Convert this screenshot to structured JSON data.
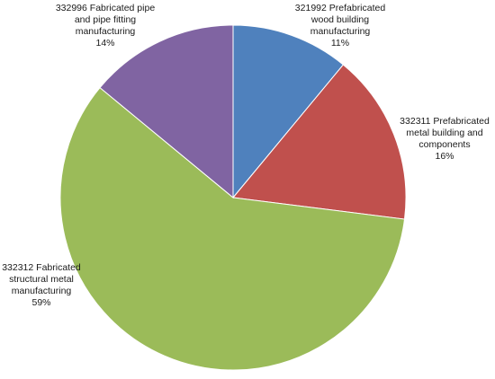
{
  "chart_data": {
    "type": "pie",
    "title": "",
    "start_angle_deg": 0,
    "direction": "clockwise",
    "slices": [
      {
        "name": "321992 Prefabricated wood building manufacturing",
        "label_lines": [
          "321992 Prefabricated",
          "wood building",
          "manufacturing",
          "11%"
        ],
        "value": 11,
        "color": "#4F81BD"
      },
      {
        "name": "332311 Prefabricated metal building and components",
        "label_lines": [
          "332311 Prefabricated",
          "metal building and",
          "components",
          "16%"
        ],
        "value": 16,
        "color": "#C0504D"
      },
      {
        "name": "332312 Fabricated structural metal manufacturing",
        "label_lines": [
          "332312 Fabricated",
          "structural metal",
          "manufacturing",
          "59%"
        ],
        "value": 59,
        "color": "#9BBB59"
      },
      {
        "name": "332996 Fabricated pipe and pipe fitting manufacturing",
        "label_lines": [
          "332996 Fabricated pipe",
          "and pipe fitting",
          "manufacturing",
          "14%"
        ],
        "value": 14,
        "color": "#8064A2"
      }
    ]
  }
}
